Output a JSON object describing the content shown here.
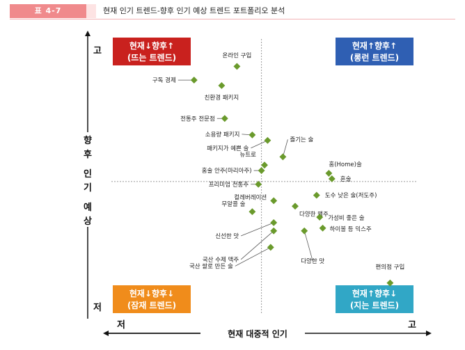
{
  "header": {
    "tag": "표 4-7",
    "title": "현재 인기 트렌드-향후 인기 예상 트렌드 포트폴리오 분석"
  },
  "colors": {
    "marker": "#6a9a2c",
    "q_rising": "#c9211e",
    "q_established": "#2f5fb3",
    "q_potential": "#f08c1b",
    "q_fading": "#31a7c6",
    "dash": "#999999",
    "header_tag": "#f08a8c"
  },
  "chart_data": {
    "type": "scatter",
    "title": "현재 인기 트렌드-향후 인기 예상 트렌드 포트폴리오 분석",
    "xlabel": "현재 대중적 인기",
    "ylabel": "향후 인기 예상",
    "x_low": "저",
    "x_high": "고",
    "y_low": "저",
    "y_high": "고",
    "xlim": [
      0,
      100
    ],
    "ylim": [
      0,
      100
    ],
    "grid": false,
    "divider": {
      "x": 49,
      "y": 48
    },
    "quadrants": {
      "top_left": {
        "line1": "현재↓향후↑",
        "line2": "(뜨는 트렌드)"
      },
      "top_right": {
        "line1": "현재↑향후↑",
        "line2": "(롱런 트렌드)"
      },
      "bottom_left": {
        "line1": "현재↓향후↓",
        "line2": "(잠재 트렌드)"
      },
      "bottom_right": {
        "line1": "현재↑향후↓",
        "line2": "(지는 트렌드)"
      }
    },
    "points": [
      {
        "label": "온라인 구입",
        "x": 41,
        "y": 90
      },
      {
        "label": "구독 경제",
        "x": 27,
        "y": 85
      },
      {
        "label": "친환경 패키지",
        "x": 36,
        "y": 83
      },
      {
        "label": "전통주 전문점",
        "x": 37,
        "y": 71
      },
      {
        "label": "소용량 패키지",
        "x": 46,
        "y": 65
      },
      {
        "label": "패키지가 예쁜 술",
        "x": 51,
        "y": 63
      },
      {
        "label": "즐기는 술",
        "x": 56,
        "y": 57
      },
      {
        "label": "뉴트로",
        "x": 50,
        "y": 54
      },
      {
        "label": "홈술 안주(마리아주)",
        "x": 49,
        "y": 52
      },
      {
        "label": "홈(Home)술",
        "x": 71,
        "y": 51
      },
      {
        "label": "혼술",
        "x": 72,
        "y": 49
      },
      {
        "label": "프리미엄 전통주",
        "x": 48,
        "y": 47
      },
      {
        "label": "도수 낮은 술(저도주)",
        "x": 67,
        "y": 43
      },
      {
        "label": "컬레버레이션",
        "x": 53,
        "y": 41
      },
      {
        "label": "다양한 맥주",
        "x": 60,
        "y": 39
      },
      {
        "label": "무알콜 술",
        "x": 46,
        "y": 37
      },
      {
        "label": "가성비 좋은 술",
        "x": 68,
        "y": 35
      },
      {
        "label": "신선한 맛",
        "x": 53,
        "y": 33
      },
      {
        "label": "하이볼 등 믹스주",
        "x": 69,
        "y": 31
      },
      {
        "label": "국산 수제 맥주",
        "x": 53,
        "y": 30
      },
      {
        "label": "다양한 맛",
        "x": 63,
        "y": 30
      },
      {
        "label": "국산 쌀로 만든 술",
        "x": 52,
        "y": 24
      },
      {
        "label": "편의점 구입",
        "x": 91,
        "y": 11
      }
    ]
  }
}
